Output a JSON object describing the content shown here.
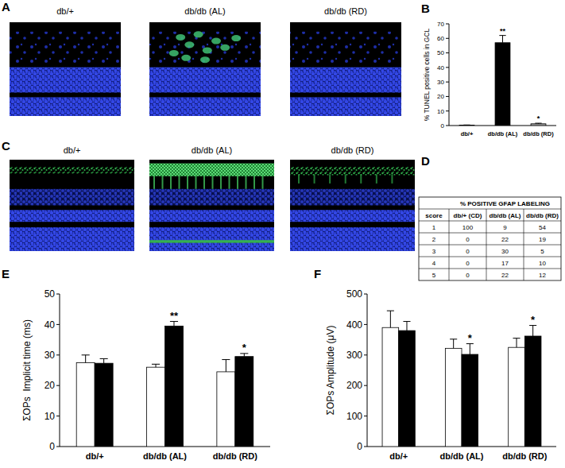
{
  "panels": {
    "A": {
      "label": "A",
      "images": [
        "db/+",
        "db/db (AL)",
        "db/db (RD)"
      ]
    },
    "C": {
      "label": "C",
      "images": [
        "db/+",
        "db/db (AL)",
        "db/db (RD)"
      ]
    }
  },
  "table": {
    "label": "D",
    "title": "% POSITIVE GFAP LABELING",
    "header": [
      "score",
      "db/+ (CD)",
      "db/db (AL)",
      "db/db (RD)"
    ],
    "rows": [
      [
        1,
        100,
        9,
        54
      ],
      [
        2,
        0,
        22,
        19
      ],
      [
        3,
        0,
        30,
        5
      ],
      [
        4,
        0,
        17,
        10
      ],
      [
        5,
        0,
        22,
        12
      ]
    ]
  },
  "chart_data": [
    {
      "label": "B",
      "type": "bar",
      "ylabel": "% TUNEL positive cells in GCL",
      "categories": [
        "db/+",
        "db/db (AL)",
        "db/db (RD)"
      ],
      "values": [
        0.3,
        57,
        1.2
      ],
      "errors": [
        0.1,
        5,
        0.4
      ],
      "significance": [
        null,
        "**",
        "*"
      ],
      "colors": [
        "#ffffff",
        "#000000",
        "#a6a6a6"
      ],
      "ylim": [
        0,
        70
      ],
      "yticks": [
        0,
        10,
        20,
        30,
        40,
        50,
        60,
        70
      ]
    },
    {
      "label": "E",
      "type": "bar",
      "ylabel": "ΣOPs  Implicit time (ms)",
      "categories": [
        "db/+",
        "db/db (AL)",
        "db/db (RD)"
      ],
      "series": [
        {
          "color": "#ffffff",
          "values": [
            27.5,
            26,
            24.5
          ],
          "errors": [
            2.5,
            1,
            4
          ]
        },
        {
          "color": "#000000",
          "values": [
            27.3,
            39.5,
            29.5
          ],
          "errors": [
            1.5,
            1.5,
            1
          ],
          "significance": [
            null,
            "**",
            "*"
          ]
        }
      ],
      "ylim": [
        0,
        50
      ],
      "yticks": [
        0,
        10,
        20,
        30,
        40,
        50
      ]
    },
    {
      "label": "F",
      "type": "bar",
      "ylabel": "ΣOPs Amplitude (μV)",
      "categories": [
        "db/+",
        "db/db (AL)",
        "db/db (RD)"
      ],
      "series": [
        {
          "color": "#ffffff",
          "values": [
            390,
            322,
            325
          ],
          "errors": [
            55,
            30,
            30
          ]
        },
        {
          "color": "#000000",
          "values": [
            380,
            302,
            362
          ],
          "errors": [
            30,
            35,
            35
          ],
          "significance": [
            null,
            "*",
            "*"
          ]
        }
      ],
      "ylim": [
        0,
        500
      ],
      "yticks": [
        0,
        100,
        200,
        300,
        400,
        500
      ]
    }
  ]
}
